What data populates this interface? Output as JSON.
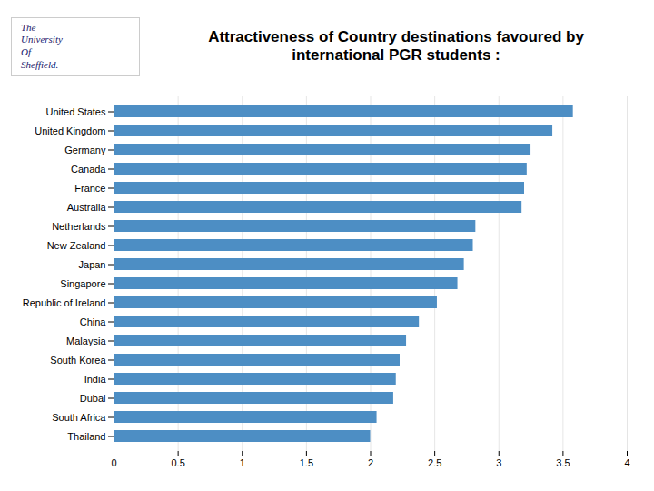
{
  "chart_data": {
    "type": "bar",
    "orientation": "horizontal",
    "title": "Attractiveness of Country destinations favoured by\ninternational PGR students :",
    "annotations": [
      "The",
      "University",
      "Of",
      "Sheffield."
    ],
    "categories": [
      "Thailand",
      "South Africa",
      "Dubai",
      "India",
      "South Korea",
      "Malaysia",
      "China",
      "Republic of Ireland",
      "Singapore",
      "Japan",
      "New Zealand",
      "Netherlands",
      "Australia",
      "France",
      "Canada",
      "Germany",
      "United Kingdom",
      "United States"
    ],
    "values": [
      2.0,
      2.05,
      2.18,
      2.2,
      2.23,
      2.28,
      2.38,
      2.52,
      2.68,
      2.73,
      2.8,
      2.82,
      3.18,
      3.2,
      3.22,
      3.25,
      3.42,
      3.58
    ],
    "color": "#4d8ec4",
    "xlim": [
      0,
      4
    ],
    "xticks": [
      0,
      0.5,
      1,
      1.5,
      2,
      2.5,
      3,
      3.5,
      4
    ],
    "grid": true
  }
}
